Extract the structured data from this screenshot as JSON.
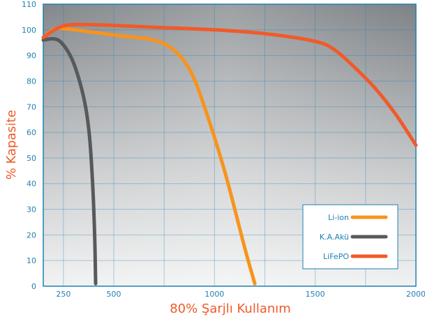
{
  "chart_data": {
    "type": "line",
    "title": "",
    "xlabel": "80% Şarjlı Kullanım",
    "ylabel": "% Kapasite",
    "xlim": [
      150,
      2000
    ],
    "ylim": [
      0,
      110
    ],
    "x_ticks": [
      250,
      500,
      1000,
      1500,
      2000
    ],
    "y_ticks": [
      0,
      10,
      20,
      30,
      40,
      50,
      60,
      70,
      80,
      90,
      100,
      110
    ],
    "x_minor": [
      750,
      1250,
      1750
    ],
    "grid": true,
    "legend_position": "bottom-right",
    "series": [
      {
        "name": "Li-ion",
        "color": "#f7941d",
        "x": [
          150,
          200,
          250,
          400,
          550,
          700,
          800,
          880,
          950,
          1050,
          1150,
          1200
        ],
        "y": [
          97,
          100,
          100.5,
          99,
          97.5,
          96,
          92,
          84,
          70,
          45,
          15,
          1
        ]
      },
      {
        "name": "K.A.Akü",
        "color": "#58595b",
        "x": [
          150,
          200,
          240,
          290,
          330,
          360,
          380,
          395,
          405,
          410
        ],
        "y": [
          96,
          96.5,
          95,
          89,
          80,
          70,
          58,
          40,
          20,
          1
        ]
      },
      {
        "name": "LiFePO",
        "color": "#f15a29",
        "x": [
          150,
          250,
          400,
          700,
          1000,
          1250,
          1500,
          1600,
          1700,
          1800,
          1900,
          2000
        ],
        "y": [
          97,
          101.5,
          102,
          101,
          100,
          98.5,
          95.5,
          92,
          85,
          77,
          67,
          55
        ]
      }
    ]
  }
}
